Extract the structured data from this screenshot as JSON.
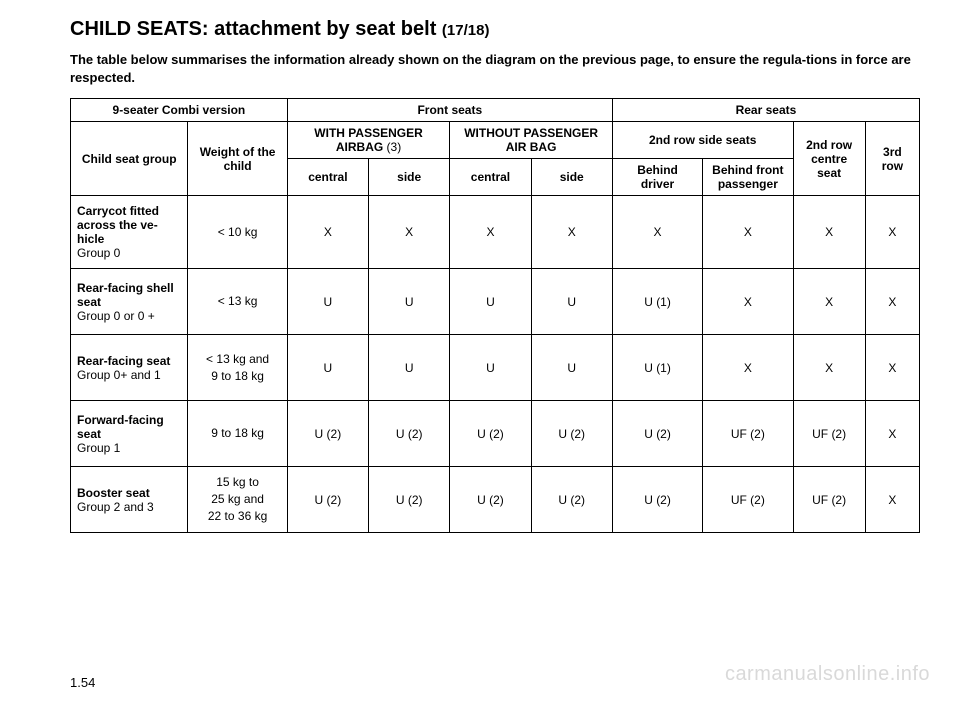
{
  "title_main": "CHILD SEATS: attachment by seat belt ",
  "title_suffix": "(17/18)",
  "intro": "The table below summarises the information already shown on the diagram on the previous page, to ensure the regula-tions in force are respected.",
  "page_num": "1.54",
  "watermark": "carmanualsonline.info",
  "table": {
    "head": {
      "r1": {
        "version": "9-seater Combi version",
        "front": "Front seats",
        "rear": "Rear seats"
      },
      "r2": {
        "group": "Child seat group",
        "weight": "Weight of the child",
        "with_airbag_line1": "WITH PASSENGER",
        "with_airbag_line2": "AIRBAG",
        "with_airbag_note": " (3)",
        "without_airbag": "WITHOUT PASSENGER AIR BAG",
        "second_side": "2nd row side seats",
        "second_centre": "2nd row centre seat",
        "third_row": "3rd row"
      },
      "r3": {
        "central1": "central",
        "side1": "side",
        "central2": "central",
        "side2": "side",
        "behind_driver": "Behind driver",
        "behind_passenger": "Behind front passenger"
      }
    },
    "rows": [
      {
        "name": "Carrycot fitted across the ve-hicle",
        "group": "Group 0",
        "weight": "< 10 kg",
        "cells": [
          "X",
          "X",
          "X",
          "X",
          "X",
          "X",
          "X",
          "X"
        ]
      },
      {
        "name": "Rear-facing shell seat",
        "group": "Group 0 or 0 +",
        "weight": "< 13 kg",
        "cells": [
          "U",
          "U",
          "U",
          "U",
          "U (1)",
          "X",
          "X",
          "X"
        ]
      },
      {
        "name": "Rear-facing seat",
        "group": "Group 0+ and 1",
        "weight_lines": [
          "< 13 kg and",
          "9 to 18 kg"
        ],
        "cells": [
          "U",
          "U",
          "U",
          "U",
          "U (1)",
          "X",
          "X",
          "X"
        ]
      },
      {
        "name": "Forward-facing seat",
        "group": "Group 1",
        "weight": "9 to 18 kg",
        "cells": [
          "U (2)",
          "U (2)",
          "U (2)",
          "U (2)",
          "U (2)",
          "UF (2)",
          "UF (2)",
          "X"
        ]
      },
      {
        "name": "Booster seat",
        "group": "Group 2 and 3",
        "weight_lines": [
          "15 kg to",
          "25 kg and",
          "22 to 36 kg"
        ],
        "cells": [
          "U (2)",
          "U (2)",
          "U (2)",
          "U (2)",
          "U (2)",
          "UF (2)",
          "UF (2)",
          "X"
        ]
      }
    ]
  }
}
